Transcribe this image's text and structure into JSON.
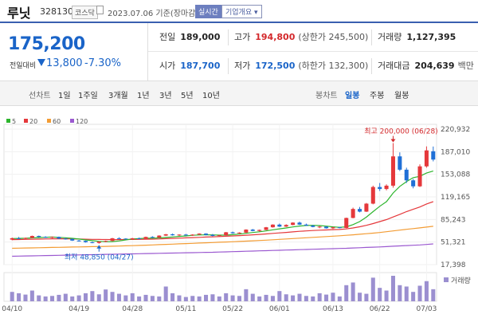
{
  "header": {
    "name": "루닛",
    "code": "328130",
    "market": "코스닥",
    "date": "2023.07.06 기준(장마감)",
    "realtime_btn": "실시간",
    "overview_btn": "기업개요 ▾"
  },
  "price": {
    "current": "175,200",
    "compare_label": "전일대비",
    "change": "13,800",
    "change_pct": "-7.30%"
  },
  "stats": {
    "prev_close": {
      "label": "전일",
      "value": "189,000"
    },
    "high": {
      "label": "고가",
      "value": "194,800",
      "sub": "(상한가 245,500)"
    },
    "volume": {
      "label": "거래량",
      "value": "1,127,395"
    },
    "open": {
      "label": "시가",
      "value": "187,700"
    },
    "low": {
      "label": "저가",
      "value": "172,500",
      "sub": "(하한가 132,300)"
    },
    "trade_amount": {
      "label": "거래대금",
      "value": "204,639",
      "unit": "백만"
    }
  },
  "tabs": {
    "line_label": "선차트",
    "periods": [
      "1일",
      "1주일",
      "3개월",
      "1년",
      "3년",
      "5년",
      "10년"
    ],
    "candle_label": "봉차트",
    "candle_types": [
      "일봉",
      "주봉",
      "월봉"
    ],
    "selected_candle": "일봉"
  },
  "legend": [
    {
      "label": "5",
      "color": "#2db52d"
    },
    {
      "label": "20",
      "color": "#e5383b"
    },
    {
      "label": "60",
      "color": "#f39c34"
    },
    {
      "label": "120",
      "color": "#9b59d0"
    }
  ],
  "chart_data": {
    "type": "candlestick",
    "y_ticks": [
      "220,932",
      "187,010",
      "153,088",
      "119,165",
      "85,243",
      "51,321",
      "17,398"
    ],
    "x_ticks": [
      "04/10",
      "04/19",
      "04/28",
      "05/11",
      "05/22",
      "06/01",
      "06/13",
      "06/22",
      "07/03"
    ],
    "annotations": {
      "high": "최고 200,000 (06/28)",
      "low": "최저 48,850 (04/27)"
    },
    "volume_label": "거래량",
    "ohlc": [
      [
        55000,
        58000,
        54000,
        57000
      ],
      [
        57000,
        59000,
        56000,
        56500
      ],
      [
        56500,
        58000,
        55500,
        57500
      ],
      [
        57500,
        61000,
        57000,
        60500
      ],
      [
        60500,
        61000,
        58500,
        59000
      ],
      [
        59000,
        60000,
        57500,
        58000
      ],
      [
        58000,
        59500,
        57000,
        59000
      ],
      [
        59000,
        59500,
        56000,
        56500
      ],
      [
        56500,
        57500,
        55000,
        56000
      ],
      [
        56000,
        56500,
        53000,
        53500
      ],
      [
        53500,
        54500,
        52000,
        53000
      ],
      [
        53000,
        53500,
        50500,
        51000
      ],
      [
        51000,
        52000,
        49500,
        50000
      ],
      [
        50000,
        52500,
        48850,
        52000
      ],
      [
        52000,
        53500,
        51000,
        53000
      ],
      [
        53000,
        57500,
        52500,
        57000
      ],
      [
        57000,
        58500,
        56000,
        56500
      ],
      [
        56500,
        57000,
        55000,
        55500
      ],
      [
        55500,
        57500,
        55000,
        57000
      ],
      [
        57000,
        58000,
        55500,
        56000
      ],
      [
        56000,
        59500,
        55500,
        59000
      ],
      [
        59000,
        60000,
        57500,
        58000
      ],
      [
        58000,
        61500,
        57500,
        61000
      ],
      [
        61000,
        63500,
        60500,
        63000
      ],
      [
        63000,
        64000,
        61000,
        61500
      ],
      [
        61500,
        63000,
        60500,
        62500
      ],
      [
        62500,
        63500,
        61000,
        61500
      ],
      [
        61500,
        63000,
        60500,
        62500
      ],
      [
        62500,
        64500,
        62000,
        64000
      ],
      [
        64000,
        64500,
        61500,
        62000
      ],
      [
        62000,
        63500,
        60000,
        60500
      ],
      [
        60500,
        62000,
        59500,
        61500
      ],
      [
        61500,
        66500,
        61000,
        66000
      ],
      [
        66000,
        67000,
        64000,
        64500
      ],
      [
        64500,
        66000,
        63500,
        65500
      ],
      [
        65500,
        70500,
        65000,
        70000
      ],
      [
        70000,
        71000,
        67500,
        68000
      ],
      [
        68000,
        70000,
        67000,
        69500
      ],
      [
        69500,
        74000,
        69000,
        73500
      ],
      [
        73500,
        78000,
        73000,
        77500
      ],
      [
        77500,
        79000,
        74000,
        74500
      ],
      [
        74500,
        78000,
        74000,
        77000
      ],
      [
        77000,
        81000,
        76500,
        80500
      ],
      [
        80500,
        82000,
        77000,
        77500
      ],
      [
        77500,
        79000,
        75500,
        76000
      ],
      [
        76000,
        77000,
        73500,
        74000
      ],
      [
        74000,
        75500,
        72000,
        74500
      ],
      [
        74500,
        75000,
        71500,
        72000
      ],
      [
        72000,
        74000,
        71000,
        73500
      ],
      [
        73500,
        74000,
        72000,
        72500
      ],
      [
        72500,
        88000,
        72000,
        87500
      ],
      [
        87500,
        103000,
        87000,
        101000
      ],
      [
        101000,
        104000,
        96000,
        97000
      ],
      [
        97000,
        110000,
        96500,
        109000
      ],
      [
        109000,
        136000,
        108000,
        134000
      ],
      [
        134000,
        140000,
        128000,
        131000
      ],
      [
        131000,
        138000,
        129000,
        136000
      ],
      [
        136000,
        200000,
        133000,
        180000
      ],
      [
        180000,
        186000,
        158000,
        160000
      ],
      [
        160000,
        163000,
        140000,
        144000
      ],
      [
        144000,
        146000,
        132000,
        135000
      ],
      [
        135000,
        168000,
        134000,
        165000
      ],
      [
        165000,
        195000,
        163000,
        189000
      ],
      [
        187700,
        194800,
        172500,
        175200
      ]
    ],
    "volume": [
      35,
      30,
      25,
      40,
      22,
      18,
      20,
      24,
      28,
      18,
      22,
      30,
      38,
      26,
      44,
      35,
      28,
      22,
      30,
      18,
      24,
      20,
      18,
      55,
      30,
      22,
      16,
      20,
      18,
      24,
      26,
      18,
      30,
      22,
      20,
      45,
      28,
      18,
      24,
      20,
      38,
      26,
      22,
      28,
      20,
      18,
      30,
      25,
      32,
      18,
      60,
      70,
      32,
      28,
      88,
      50,
      40,
      95,
      60,
      55,
      35,
      58,
      75,
      45
    ],
    "ma5": [
      56500,
      56800,
      57000,
      57500,
      58000,
      58500,
      58800,
      58300,
      57700,
      56900,
      55800,
      54500,
      53400,
      52300,
      51800,
      52000,
      53000,
      54500,
      56000,
      56500,
      57000,
      57200,
      57500,
      58200,
      59000,
      59800,
      60500,
      61400,
      61900,
      62200,
      62000,
      61700,
      61700,
      62400,
      63200,
      64500,
      65700,
      66700,
      68100,
      69700,
      71200,
      72500,
      74000,
      75300,
      76200,
      76400,
      76100,
      75200,
      74100,
      73400,
      74200,
      77500,
      82000,
      88800,
      97000,
      105000,
      112000,
      125000,
      135000,
      142000,
      148000,
      150000,
      155000,
      158000
    ],
    "ma20": [
      55000,
      55100,
      55300,
      55500,
      55700,
      56000,
      56200,
      56300,
      56200,
      56000,
      55800,
      55600,
      55400,
      55200,
      55100,
      55000,
      55000,
      55100,
      55200,
      55300,
      55500,
      55700,
      56000,
      56400,
      56800,
      57200,
      57600,
      58000,
      58400,
      58800,
      59200,
      59600,
      60000,
      60500,
      61000,
      61600,
      62200,
      62800,
      63500,
      64300,
      65000,
      65800,
      66600,
      67400,
      68000,
      68600,
      69100,
      69500,
      69900,
      70200,
      71000,
      72500,
      74300,
      76400,
      79000,
      82000,
      85000,
      89000,
      93000,
      97000,
      100500,
      104000,
      108500,
      112000
    ],
    "ma60": [
      42000,
      42200,
      42400,
      42600,
      42800,
      43000,
      43200,
      43400,
      43600,
      43800,
      44000,
      44200,
      44400,
      44600,
      44800,
      45000,
      45300,
      45600,
      45900,
      46200,
      46600,
      47000,
      47400,
      47800,
      48200,
      48600,
      49000,
      49400,
      49800,
      50200,
      50600,
      51000,
      51400,
      51800,
      52200,
      52700,
      53200,
      53700,
      54200,
      54700,
      55300,
      55900,
      56500,
      57100,
      57700,
      58300,
      58900,
      59500,
      60100,
      60700,
      61400,
      62200,
      63000,
      63800,
      64700,
      65700,
      66800,
      68000,
      69200,
      70400,
      71500,
      72600,
      73800,
      75000
    ],
    "ma120": [
      30000,
      30200,
      30400,
      30600,
      30800,
      31000,
      31200,
      31400,
      31600,
      31800,
      32000,
      32200,
      32400,
      32600,
      32800,
      33000,
      33200,
      33400,
      33600,
      33800,
      34000,
      34200,
      34400,
      34600,
      34800,
      35000,
      35200,
      35400,
      35600,
      35800,
      36000,
      36300,
      36600,
      36900,
      37200,
      37500,
      37800,
      38100,
      38400,
      38700,
      39000,
      39300,
      39600,
      39900,
      40200,
      40500,
      40800,
      41100,
      41400,
      41700,
      42000,
      42400,
      42800,
      43200,
      43600,
      44000,
      44500,
      45000,
      45500,
      46000,
      46500,
      47000,
      47700,
      48500
    ]
  }
}
